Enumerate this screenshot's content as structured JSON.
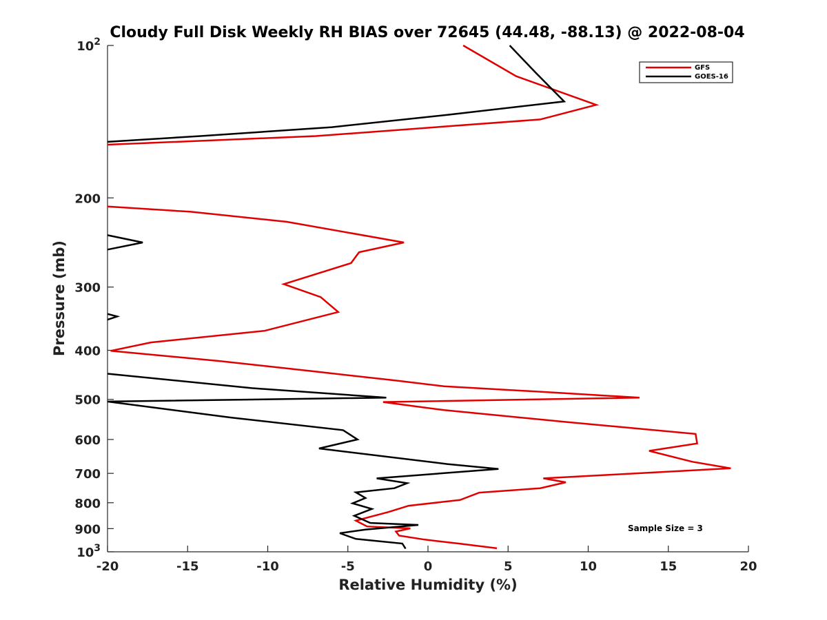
{
  "chart_data": {
    "type": "line",
    "title": "Cloudy Full Disk Weekly RH BIAS over 72645 (44.48, -88.13) @ 2022-08-04",
    "xlabel": "Relative Humidity (%)",
    "ylabel": "Pressure (mb)",
    "xlim": [
      -20,
      20
    ],
    "ylim": [
      1000,
      100
    ],
    "y_scale": "log",
    "y_reversed": true,
    "grid": false,
    "legend_position": "top-right",
    "x_ticks": [
      "-20",
      "-15",
      "-10",
      "-5",
      "0",
      "5",
      "10",
      "15",
      "20"
    ],
    "y_ticks": [
      {
        "value": 100,
        "base": "10",
        "exp": "2"
      },
      {
        "value": 200,
        "label": "200"
      },
      {
        "value": 300,
        "label": "300"
      },
      {
        "value": 400,
        "label": "400"
      },
      {
        "value": 500,
        "label": "500"
      },
      {
        "value": 600,
        "label": "600"
      },
      {
        "value": 700,
        "label": "700"
      },
      {
        "value": 800,
        "label": "800"
      },
      {
        "value": 900,
        "label": "900"
      },
      {
        "value": 1000,
        "base": "10",
        "exp": "3"
      }
    ],
    "annotation": "Sample Size = 3",
    "series": [
      {
        "name": "GFS",
        "color": "#e00000",
        "segments": [
          [
            [
              2.2,
              100
            ],
            [
              5.5,
              115
            ],
            [
              10.5,
              131
            ],
            [
              7,
              140
            ],
            [
              -7,
              151
            ],
            [
              -20,
              157
            ]
          ],
          [
            [
              -20,
              208
            ],
            [
              -14.8,
              213
            ],
            [
              -8.8,
              223
            ],
            [
              -1.5,
              245
            ],
            [
              -4.3,
              256
            ],
            [
              -4.8,
              269
            ],
            [
              -9,
              296
            ],
            [
              -6.7,
              314
            ],
            [
              -5.6,
              336
            ],
            [
              -10.2,
              366
            ],
            [
              -17.3,
              386
            ],
            [
              -19.8,
              401
            ],
            [
              -13,
              420
            ],
            [
              -7.2,
              440
            ],
            [
              -2,
              459
            ],
            [
              1,
              471
            ],
            [
              8,
              485
            ],
            [
              13.2,
              496
            ],
            [
              -2.8,
              506
            ],
            [
              1,
              525
            ],
            [
              8.6,
              554
            ],
            [
              16.7,
              585
            ],
            [
              16.8,
              611
            ],
            [
              13.8,
              632
            ],
            [
              16.5,
              664
            ],
            [
              18.9,
              684
            ],
            [
              11.5,
              704
            ],
            [
              7.2,
              716
            ],
            [
              8.6,
              729
            ],
            [
              7,
              749
            ],
            [
              3.2,
              764
            ],
            [
              2,
              790
            ],
            [
              -1.2,
              811
            ],
            [
              -2.5,
              835
            ],
            [
              -3.8,
              856
            ],
            [
              -4.5,
              868
            ],
            [
              -3.8,
              891
            ],
            [
              -1.1,
              899
            ],
            [
              -2,
              912
            ],
            [
              -1.8,
              929
            ],
            [
              -0.2,
              946
            ],
            [
              2,
              964
            ],
            [
              4.3,
              984
            ]
          ]
        ]
      },
      {
        "name": "GOES-16",
        "color": "#000000",
        "segments": [
          [
            [
              5.1,
              100
            ],
            [
              6.7,
              113
            ],
            [
              8.5,
              129
            ],
            [
              1.3,
              137
            ],
            [
              -6,
              145
            ],
            [
              -14.2,
              151
            ],
            [
              -20,
              155
            ]
          ],
          [
            [
              -20,
              237
            ],
            [
              -17.8,
              245
            ],
            [
              -20,
              253
            ]
          ],
          [
            [
              -20,
              339
            ],
            [
              -19.4,
              343
            ],
            [
              -20,
              348
            ]
          ],
          [
            [
              -20,
              445
            ],
            [
              -11,
              475
            ],
            [
              -2.6,
              496
            ],
            [
              -20,
              505
            ],
            [
              -12.3,
              543
            ],
            [
              -5.3,
              575
            ],
            [
              -4.4,
              600
            ],
            [
              -6.8,
              625
            ],
            [
              1.2,
              671
            ],
            [
              4.4,
              686
            ],
            [
              -3.2,
              716
            ],
            [
              -1.3,
              732
            ],
            [
              -2.1,
              749
            ],
            [
              -4.5,
              763
            ],
            [
              -3.9,
              783
            ],
            [
              -4.7,
              802
            ],
            [
              -3.5,
              823
            ],
            [
              -4.6,
              849
            ],
            [
              -3.6,
              877
            ],
            [
              -0.6,
              885
            ],
            [
              -3.9,
              904
            ],
            [
              -5.5,
              919
            ],
            [
              -4.5,
              943
            ],
            [
              -1.6,
              963
            ],
            [
              -1.4,
              986
            ]
          ]
        ]
      }
    ]
  }
}
